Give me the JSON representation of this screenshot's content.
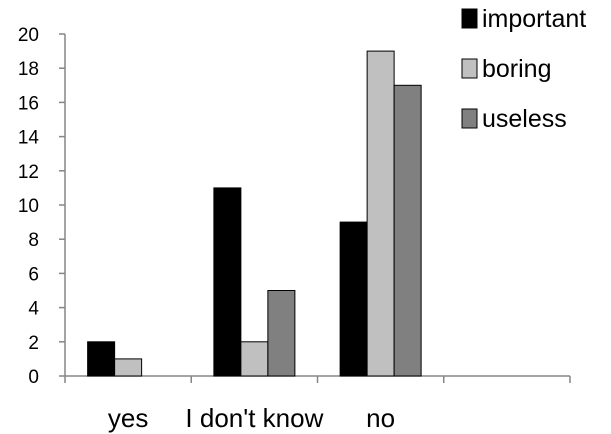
{
  "chart_data": {
    "type": "bar",
    "categories": [
      "yes",
      "I don't know",
      "no",
      ""
    ],
    "series": [
      {
        "name": "important",
        "values": [
          2,
          11,
          9,
          null
        ],
        "color": "#000000"
      },
      {
        "name": "boring",
        "values": [
          1,
          2,
          19,
          null
        ],
        "color": "#c0c0c0"
      },
      {
        "name": "useless",
        "values": [
          null,
          5,
          17,
          null
        ],
        "color": "#808080"
      }
    ],
    "ylim": [
      0,
      20
    ],
    "yticks": [
      0,
      2,
      4,
      6,
      8,
      10,
      12,
      14,
      16,
      18,
      20
    ],
    "grid": false,
    "legend_position": "top-right",
    "title": "",
    "xlabel": "",
    "ylabel": ""
  }
}
